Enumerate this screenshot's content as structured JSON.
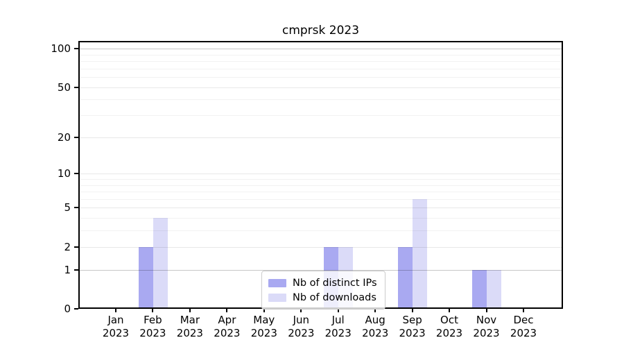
{
  "chart_data": {
    "type": "bar",
    "title": "cmprsk 2023",
    "x_categories": [
      {
        "month": "Jan",
        "year": "2023"
      },
      {
        "month": "Feb",
        "year": "2023"
      },
      {
        "month": "Mar",
        "year": "2023"
      },
      {
        "month": "Apr",
        "year": "2023"
      },
      {
        "month": "May",
        "year": "2023"
      },
      {
        "month": "Jun",
        "year": "2023"
      },
      {
        "month": "Jul",
        "year": "2023"
      },
      {
        "month": "Aug",
        "year": "2023"
      },
      {
        "month": "Sep",
        "year": "2023"
      },
      {
        "month": "Oct",
        "year": "2023"
      },
      {
        "month": "Nov",
        "year": "2023"
      },
      {
        "month": "Dec",
        "year": "2023"
      }
    ],
    "series": [
      {
        "name": "Nb of distinct IPs",
        "color": "#a9a9f1",
        "values": [
          0,
          2,
          0,
          0,
          0,
          0,
          2,
          0,
          2,
          0,
          1,
          0
        ]
      },
      {
        "name": "Nb of downloads",
        "color": "#dbdbf8",
        "values": [
          0,
          4,
          0,
          0,
          0,
          0,
          2,
          0,
          6,
          0,
          1,
          0
        ]
      }
    ],
    "y_scale": "log10(1+x)",
    "ylim": [
      0,
      115
    ],
    "y_ticks": [
      0,
      1,
      2,
      5,
      10,
      20,
      50,
      100
    ],
    "y_gridlines_emphasized": [
      1,
      100
    ],
    "y_minor_gridlines": [
      3,
      4,
      6,
      7,
      8,
      9,
      30,
      40,
      60,
      70,
      80,
      90
    ],
    "grid": "horizontal",
    "legend": {
      "position": "lower center"
    }
  },
  "colors": {
    "background": "#ffffff",
    "axis": "#000000",
    "bar_distinct_ips": "#a9a9f1",
    "bar_downloads": "#dbdbf8"
  }
}
